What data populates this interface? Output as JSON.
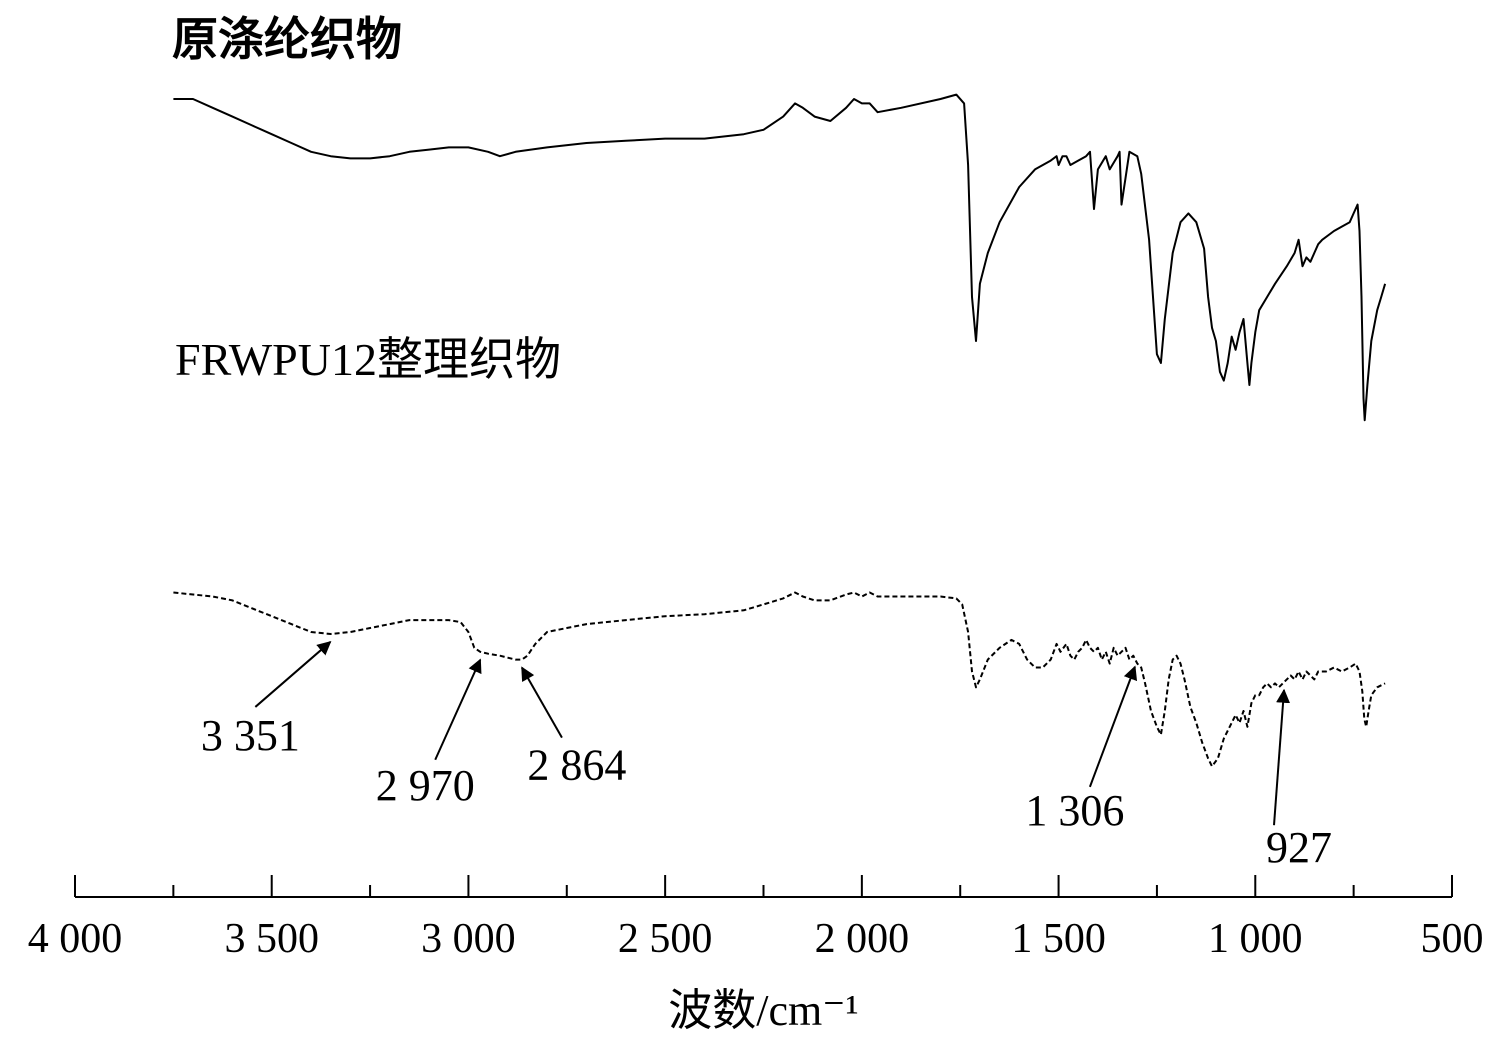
{
  "chart_data": {
    "type": "line",
    "title": "",
    "xlabel": "波数/cm⁻¹",
    "ylabel": "",
    "xlim": [
      4000,
      500
    ],
    "x_reversed": true,
    "xticks": [
      {
        "value": 4000,
        "label": "4 000"
      },
      {
        "value": 3500,
        "label": "3 500"
      },
      {
        "value": 3000,
        "label": "3 000"
      },
      {
        "value": 2500,
        "label": "2 500"
      },
      {
        "value": 2000,
        "label": "2 000"
      },
      {
        "value": 1500,
        "label": "1 500"
      },
      {
        "value": 1000,
        "label": "1 000"
      },
      {
        "value": 500,
        "label": "500"
      }
    ],
    "minor_tick_step": 250,
    "grid": false,
    "series": [
      {
        "name": "原涤纶织物",
        "style": "solid",
        "color": "#000000",
        "points": [
          [
            3750,
            0.9
          ],
          [
            3700,
            0.9
          ],
          [
            3650,
            0.88
          ],
          [
            3600,
            0.86
          ],
          [
            3550,
            0.84
          ],
          [
            3500,
            0.82
          ],
          [
            3450,
            0.8
          ],
          [
            3400,
            0.78
          ],
          [
            3350,
            0.77
          ],
          [
            3300,
            0.765
          ],
          [
            3250,
            0.765
          ],
          [
            3200,
            0.77
          ],
          [
            3150,
            0.78
          ],
          [
            3100,
            0.785
          ],
          [
            3050,
            0.79
          ],
          [
            3000,
            0.79
          ],
          [
            2950,
            0.78
          ],
          [
            2920,
            0.77
          ],
          [
            2880,
            0.78
          ],
          [
            2800,
            0.79
          ],
          [
            2700,
            0.8
          ],
          [
            2600,
            0.805
          ],
          [
            2500,
            0.81
          ],
          [
            2400,
            0.81
          ],
          [
            2300,
            0.82
          ],
          [
            2250,
            0.83
          ],
          [
            2200,
            0.86
          ],
          [
            2170,
            0.89
          ],
          [
            2150,
            0.88
          ],
          [
            2120,
            0.86
          ],
          [
            2080,
            0.85
          ],
          [
            2040,
            0.88
          ],
          [
            2020,
            0.9
          ],
          [
            2000,
            0.89
          ],
          [
            1980,
            0.89
          ],
          [
            1960,
            0.87
          ],
          [
            1900,
            0.88
          ],
          [
            1800,
            0.9
          ],
          [
            1760,
            0.91
          ],
          [
            1740,
            0.89
          ],
          [
            1730,
            0.75
          ],
          [
            1720,
            0.45
          ],
          [
            1710,
            0.35
          ],
          [
            1700,
            0.48
          ],
          [
            1680,
            0.55
          ],
          [
            1650,
            0.62
          ],
          [
            1600,
            0.7
          ],
          [
            1560,
            0.74
          ],
          [
            1520,
            0.76
          ],
          [
            1505,
            0.77
          ],
          [
            1500,
            0.75
          ],
          [
            1490,
            0.77
          ],
          [
            1480,
            0.77
          ],
          [
            1470,
            0.75
          ],
          [
            1450,
            0.76
          ],
          [
            1430,
            0.77
          ],
          [
            1420,
            0.78
          ],
          [
            1410,
            0.65
          ],
          [
            1400,
            0.74
          ],
          [
            1380,
            0.77
          ],
          [
            1370,
            0.74
          ],
          [
            1350,
            0.77
          ],
          [
            1345,
            0.78
          ],
          [
            1340,
            0.66
          ],
          [
            1330,
            0.72
          ],
          [
            1320,
            0.78
          ],
          [
            1300,
            0.77
          ],
          [
            1290,
            0.73
          ],
          [
            1270,
            0.58
          ],
          [
            1260,
            0.45
          ],
          [
            1250,
            0.32
          ],
          [
            1240,
            0.3
          ],
          [
            1230,
            0.4
          ],
          [
            1210,
            0.55
          ],
          [
            1190,
            0.62
          ],
          [
            1170,
            0.64
          ],
          [
            1150,
            0.62
          ],
          [
            1130,
            0.56
          ],
          [
            1120,
            0.45
          ],
          [
            1110,
            0.38
          ],
          [
            1100,
            0.35
          ],
          [
            1090,
            0.28
          ],
          [
            1080,
            0.26
          ],
          [
            1070,
            0.3
          ],
          [
            1060,
            0.36
          ],
          [
            1050,
            0.33
          ],
          [
            1040,
            0.37
          ],
          [
            1030,
            0.4
          ],
          [
            1020,
            0.3
          ],
          [
            1015,
            0.25
          ],
          [
            1010,
            0.3
          ],
          [
            1000,
            0.37
          ],
          [
            990,
            0.42
          ],
          [
            970,
            0.45
          ],
          [
            950,
            0.48
          ],
          [
            920,
            0.52
          ],
          [
            900,
            0.55
          ],
          [
            890,
            0.58
          ],
          [
            880,
            0.52
          ],
          [
            870,
            0.54
          ],
          [
            860,
            0.53
          ],
          [
            850,
            0.55
          ],
          [
            840,
            0.57
          ],
          [
            830,
            0.58
          ],
          [
            800,
            0.6
          ],
          [
            780,
            0.61
          ],
          [
            760,
            0.62
          ],
          [
            750,
            0.64
          ],
          [
            740,
            0.66
          ],
          [
            735,
            0.6
          ],
          [
            730,
            0.45
          ],
          [
            725,
            0.22
          ],
          [
            722,
            0.17
          ],
          [
            715,
            0.25
          ],
          [
            705,
            0.35
          ],
          [
            690,
            0.42
          ],
          [
            680,
            0.45
          ],
          [
            670,
            0.48
          ]
        ]
      },
      {
        "name": "FRWPU12整理织物",
        "style": "dashed",
        "color": "#000000",
        "points": [
          [
            3750,
            0.5
          ],
          [
            3700,
            0.495
          ],
          [
            3650,
            0.49
          ],
          [
            3600,
            0.48
          ],
          [
            3550,
            0.46
          ],
          [
            3500,
            0.44
          ],
          [
            3450,
            0.42
          ],
          [
            3400,
            0.4
          ],
          [
            3350,
            0.395
          ],
          [
            3300,
            0.4
          ],
          [
            3250,
            0.41
          ],
          [
            3200,
            0.42
          ],
          [
            3150,
            0.43
          ],
          [
            3100,
            0.43
          ],
          [
            3050,
            0.43
          ],
          [
            3020,
            0.425
          ],
          [
            3000,
            0.4
          ],
          [
            2985,
            0.36
          ],
          [
            2970,
            0.35
          ],
          [
            2950,
            0.345
          ],
          [
            2920,
            0.34
          ],
          [
            2900,
            0.335
          ],
          [
            2880,
            0.33
          ],
          [
            2864,
            0.33
          ],
          [
            2850,
            0.34
          ],
          [
            2830,
            0.37
          ],
          [
            2800,
            0.4
          ],
          [
            2750,
            0.41
          ],
          [
            2700,
            0.42
          ],
          [
            2600,
            0.43
          ],
          [
            2500,
            0.44
          ],
          [
            2400,
            0.445
          ],
          [
            2300,
            0.455
          ],
          [
            2250,
            0.47
          ],
          [
            2200,
            0.485
          ],
          [
            2170,
            0.5
          ],
          [
            2150,
            0.49
          ],
          [
            2120,
            0.48
          ],
          [
            2080,
            0.48
          ],
          [
            2040,
            0.495
          ],
          [
            2020,
            0.5
          ],
          [
            2000,
            0.49
          ],
          [
            1980,
            0.5
          ],
          [
            1960,
            0.49
          ],
          [
            1900,
            0.49
          ],
          [
            1800,
            0.49
          ],
          [
            1760,
            0.485
          ],
          [
            1745,
            0.47
          ],
          [
            1730,
            0.4
          ],
          [
            1720,
            0.3
          ],
          [
            1710,
            0.26
          ],
          [
            1700,
            0.28
          ],
          [
            1680,
            0.33
          ],
          [
            1650,
            0.36
          ],
          [
            1620,
            0.38
          ],
          [
            1600,
            0.37
          ],
          [
            1580,
            0.33
          ],
          [
            1560,
            0.31
          ],
          [
            1540,
            0.31
          ],
          [
            1520,
            0.33
          ],
          [
            1505,
            0.37
          ],
          [
            1495,
            0.35
          ],
          [
            1480,
            0.37
          ],
          [
            1470,
            0.34
          ],
          [
            1460,
            0.33
          ],
          [
            1450,
            0.35
          ],
          [
            1440,
            0.36
          ],
          [
            1430,
            0.38
          ],
          [
            1420,
            0.36
          ],
          [
            1410,
            0.35
          ],
          [
            1400,
            0.36
          ],
          [
            1390,
            0.33
          ],
          [
            1380,
            0.35
          ],
          [
            1370,
            0.32
          ],
          [
            1360,
            0.36
          ],
          [
            1350,
            0.34
          ],
          [
            1340,
            0.35
          ],
          [
            1330,
            0.36
          ],
          [
            1320,
            0.33
          ],
          [
            1310,
            0.34
          ],
          [
            1300,
            0.32
          ],
          [
            1290,
            0.31
          ],
          [
            1280,
            0.27
          ],
          [
            1265,
            0.2
          ],
          [
            1250,
            0.16
          ],
          [
            1240,
            0.14
          ],
          [
            1230,
            0.2
          ],
          [
            1220,
            0.28
          ],
          [
            1210,
            0.33
          ],
          [
            1200,
            0.34
          ],
          [
            1190,
            0.32
          ],
          [
            1180,
            0.28
          ],
          [
            1165,
            0.21
          ],
          [
            1150,
            0.17
          ],
          [
            1135,
            0.12
          ],
          [
            1120,
            0.08
          ],
          [
            1110,
            0.06
          ],
          [
            1095,
            0.08
          ],
          [
            1080,
            0.13
          ],
          [
            1065,
            0.16
          ],
          [
            1050,
            0.19
          ],
          [
            1040,
            0.17
          ],
          [
            1030,
            0.2
          ],
          [
            1020,
            0.16
          ],
          [
            1010,
            0.22
          ],
          [
            1000,
            0.24
          ],
          [
            990,
            0.24
          ],
          [
            980,
            0.26
          ],
          [
            970,
            0.27
          ],
          [
            960,
            0.26
          ],
          [
            950,
            0.27
          ],
          [
            940,
            0.26
          ],
          [
            930,
            0.27
          ],
          [
            920,
            0.28
          ],
          [
            910,
            0.29
          ],
          [
            900,
            0.28
          ],
          [
            890,
            0.3
          ],
          [
            880,
            0.28
          ],
          [
            870,
            0.3
          ],
          [
            860,
            0.29
          ],
          [
            850,
            0.28
          ],
          [
            840,
            0.3
          ],
          [
            820,
            0.3
          ],
          [
            800,
            0.31
          ],
          [
            780,
            0.3
          ],
          [
            760,
            0.31
          ],
          [
            745,
            0.32
          ],
          [
            735,
            0.3
          ],
          [
            728,
            0.25
          ],
          [
            723,
            0.18
          ],
          [
            718,
            0.16
          ],
          [
            712,
            0.2
          ],
          [
            705,
            0.24
          ],
          [
            690,
            0.26
          ],
          [
            680,
            0.265
          ],
          [
            670,
            0.27
          ]
        ]
      }
    ],
    "series_labels": [
      {
        "series": 0,
        "text": "原涤纶织物",
        "anchor_x": 3750
      },
      {
        "series": 1,
        "text": "FRWPU12整理织物",
        "anchor_x": 3750
      }
    ],
    "annotations": [
      {
        "text": "3 351",
        "x": 3351,
        "series": 1,
        "label_side": "lower-left"
      },
      {
        "text": "2 970",
        "x": 2970,
        "series": 1,
        "label_side": "below"
      },
      {
        "text": "2 864",
        "x": 2864,
        "series": 1,
        "label_side": "lower-right"
      },
      {
        "text": "1 306",
        "x": 1306,
        "series": 1,
        "label_side": "below"
      },
      {
        "text": "927",
        "x": 927,
        "series": 1,
        "label_side": "below"
      }
    ]
  }
}
